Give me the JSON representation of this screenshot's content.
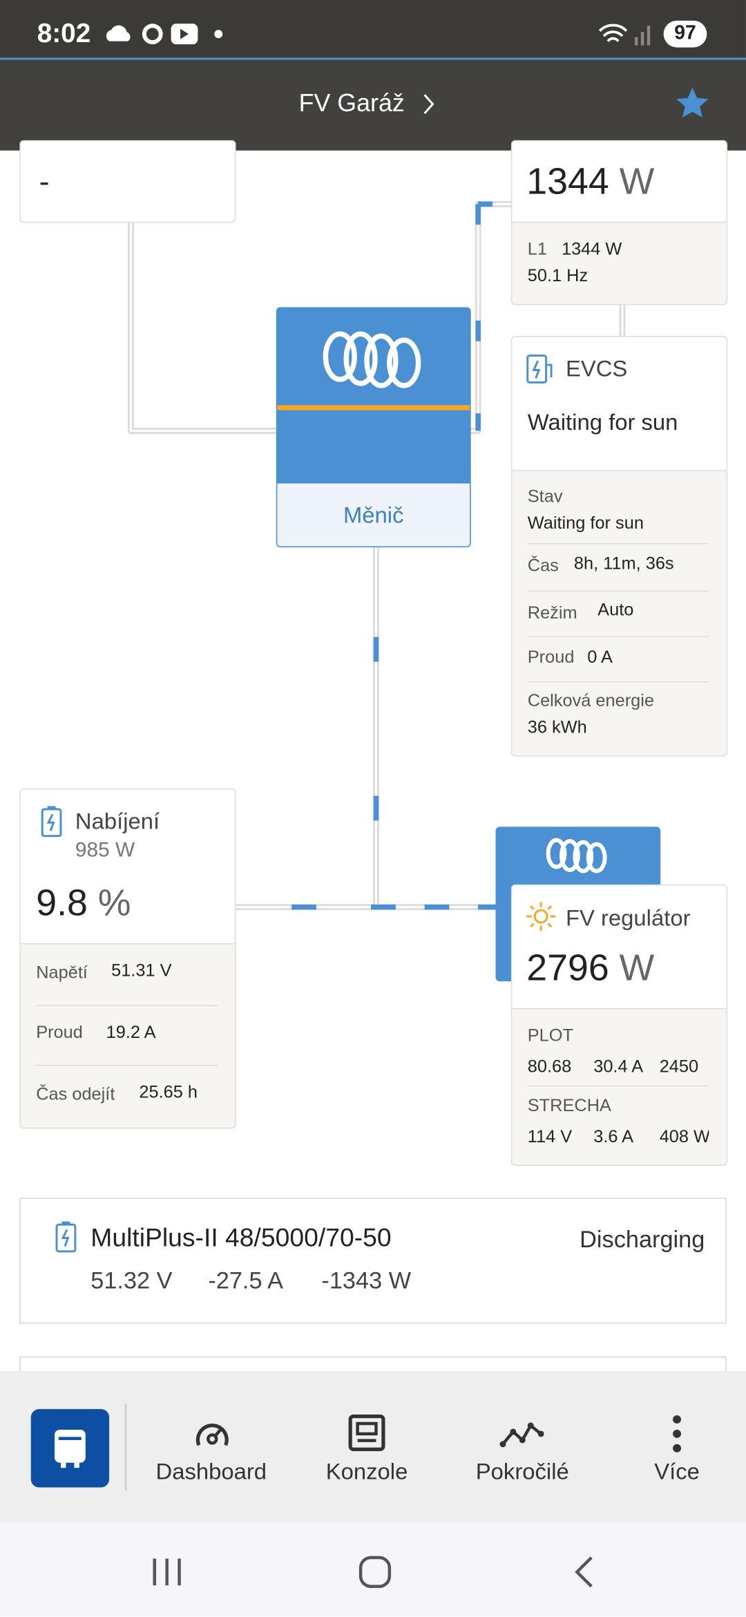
{
  "status_bar": {
    "time": "8:02",
    "battery": "97"
  },
  "header": {
    "title": "FV Garáž"
  },
  "top_left_card": {
    "value": "-"
  },
  "ac_loads_card": {
    "power": "1344",
    "unit": "W",
    "phase": "L1",
    "phase_power": "1344 W",
    "frequency": "50.1 Hz"
  },
  "inverter": {
    "label": "Měnič"
  },
  "evcs_card": {
    "title": "EVCS",
    "status": "Waiting for sun",
    "rows": [
      [
        "Stav",
        "Waiting for sun"
      ],
      [
        "Čas",
        "8h, 11m, 36s"
      ],
      [
        "Režim",
        "Auto"
      ],
      [
        "Proud",
        "0 A"
      ],
      [
        "Celková energie",
        "36 kWh"
      ]
    ]
  },
  "battery_card": {
    "title": "Nabíjení",
    "power": "985 W",
    "soc": "9.8",
    "soc_unit": "%",
    "rows": [
      [
        "Napětí",
        "51.31 V"
      ],
      [
        "Proud",
        "19.2 A"
      ],
      [
        "Čas odejít",
        "25.65 h"
      ]
    ]
  },
  "solar_card": {
    "title": "FV regulátor",
    "power": "2796",
    "unit": "W",
    "trackers": [
      {
        "name": "PLOT",
        "values": [
          "80.68",
          "30.4 A",
          "2450"
        ]
      },
      {
        "name": "STRECHA",
        "values": [
          "114 V",
          "3.6 A",
          "408 W"
        ]
      }
    ]
  },
  "device_card": {
    "name": "MultiPlus-II 48/5000/70-50",
    "state": "Discharging",
    "values": [
      "51.32 V",
      "-27.5 A",
      "-1343 W"
    ]
  },
  "bottom_nav": {
    "items": [
      "Dashboard",
      "Konzole",
      "Pokročilé",
      "Více"
    ]
  }
}
